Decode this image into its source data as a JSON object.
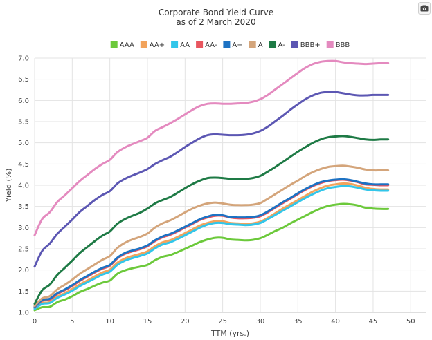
{
  "toolbar": {
    "camera_icon": "camera-icon"
  },
  "chart_data": {
    "type": "line",
    "title": "Corporate Bond Yield Curve",
    "subtitle": "as of 2 March 2020",
    "xlabel": "TTM (yrs.)",
    "ylabel": "Yield (%)",
    "xlim": [
      0,
      52
    ],
    "ylim": [
      1.0,
      7.0
    ],
    "xticks": [
      0,
      5,
      10,
      15,
      20,
      25,
      30,
      35,
      40,
      45,
      50
    ],
    "yticks": [
      "1.0",
      "1.5",
      "2.0",
      "2.5",
      "3.0",
      "3.5",
      "4.0",
      "4.5",
      "5.0",
      "5.5",
      "6.0",
      "6.5",
      "7.0"
    ],
    "grid": true,
    "legend": "top",
    "x": [
      0,
      1,
      2,
      3,
      4,
      5,
      6,
      7,
      8,
      9,
      10,
      11,
      12,
      13,
      14,
      15,
      16,
      17,
      18,
      19,
      20,
      21,
      22,
      23,
      24,
      25,
      26,
      27,
      28,
      29,
      30,
      31,
      32,
      33,
      34,
      35,
      36,
      37,
      38,
      39,
      40,
      41,
      42,
      43,
      44,
      45,
      46,
      47
    ],
    "series": [
      {
        "name": "AAA",
        "color": "#6cc93b",
        "values": [
          1.05,
          1.12,
          1.13,
          1.24,
          1.3,
          1.38,
          1.48,
          1.55,
          1.63,
          1.7,
          1.75,
          1.91,
          1.99,
          2.04,
          2.08,
          2.12,
          2.23,
          2.31,
          2.35,
          2.42,
          2.5,
          2.58,
          2.66,
          2.72,
          2.76,
          2.76,
          2.72,
          2.71,
          2.7,
          2.71,
          2.75,
          2.83,
          2.92,
          3.0,
          3.1,
          3.19,
          3.28,
          3.37,
          3.45,
          3.51,
          3.54,
          3.56,
          3.55,
          3.52,
          3.47,
          3.45,
          3.44,
          3.44
        ]
      },
      {
        "name": "AA+",
        "color": "#f2a35b",
        "values": [
          1.1,
          1.22,
          1.24,
          1.37,
          1.45,
          1.55,
          1.66,
          1.75,
          1.85,
          1.94,
          2.01,
          2.17,
          2.27,
          2.33,
          2.38,
          2.44,
          2.56,
          2.65,
          2.7,
          2.78,
          2.87,
          2.96,
          3.05,
          3.11,
          3.15,
          3.15,
          3.11,
          3.1,
          3.09,
          3.1,
          3.14,
          3.23,
          3.34,
          3.45,
          3.55,
          3.65,
          3.75,
          3.85,
          3.93,
          3.99,
          4.02,
          4.04,
          4.03,
          3.99,
          3.94,
          3.91,
          3.9,
          3.9
        ]
      },
      {
        "name": "AA",
        "color": "#32c6ea",
        "values": [
          1.08,
          1.2,
          1.22,
          1.34,
          1.42,
          1.51,
          1.62,
          1.71,
          1.8,
          1.89,
          1.96,
          2.12,
          2.22,
          2.28,
          2.33,
          2.39,
          2.51,
          2.6,
          2.65,
          2.73,
          2.82,
          2.91,
          3.0,
          3.07,
          3.11,
          3.11,
          3.08,
          3.07,
          3.06,
          3.07,
          3.11,
          3.2,
          3.3,
          3.4,
          3.5,
          3.6,
          3.7,
          3.79,
          3.87,
          3.93,
          3.96,
          3.98,
          3.97,
          3.94,
          3.9,
          3.88,
          3.87,
          3.87
        ]
      },
      {
        "name": "AA-",
        "color": "#e8565f",
        "values": [
          1.12,
          1.27,
          1.3,
          1.43,
          1.52,
          1.62,
          1.74,
          1.84,
          1.94,
          2.03,
          2.1,
          2.27,
          2.38,
          2.44,
          2.49,
          2.56,
          2.68,
          2.77,
          2.83,
          2.91,
          3.0,
          3.09,
          3.18,
          3.24,
          3.28,
          3.28,
          3.24,
          3.22,
          3.22,
          3.23,
          3.27,
          3.36,
          3.47,
          3.58,
          3.68,
          3.79,
          3.89,
          3.98,
          4.05,
          4.1,
          4.12,
          4.13,
          4.11,
          4.07,
          4.02,
          4.01,
          4.0,
          4.0
        ]
      },
      {
        "name": "A+",
        "color": "#1d72c3",
        "values": [
          1.13,
          1.29,
          1.32,
          1.45,
          1.54,
          1.64,
          1.76,
          1.86,
          1.96,
          2.05,
          2.12,
          2.29,
          2.4,
          2.46,
          2.51,
          2.58,
          2.7,
          2.79,
          2.85,
          2.93,
          3.02,
          3.11,
          3.2,
          3.26,
          3.3,
          3.29,
          3.25,
          3.24,
          3.24,
          3.25,
          3.29,
          3.38,
          3.49,
          3.6,
          3.7,
          3.81,
          3.91,
          4.0,
          4.07,
          4.11,
          4.13,
          4.14,
          4.12,
          4.08,
          4.04,
          4.02,
          4.02,
          4.02
        ]
      },
      {
        "name": "A",
        "color": "#d4a57b",
        "values": [
          1.15,
          1.33,
          1.38,
          1.54,
          1.65,
          1.77,
          1.91,
          2.02,
          2.13,
          2.24,
          2.33,
          2.52,
          2.64,
          2.72,
          2.78,
          2.86,
          3.0,
          3.1,
          3.17,
          3.26,
          3.36,
          3.45,
          3.52,
          3.57,
          3.59,
          3.57,
          3.54,
          3.53,
          3.53,
          3.54,
          3.58,
          3.68,
          3.79,
          3.9,
          4.01,
          4.11,
          4.22,
          4.31,
          4.38,
          4.43,
          4.45,
          4.46,
          4.44,
          4.41,
          4.37,
          4.35,
          4.35,
          4.35
        ]
      },
      {
        "name": "A-",
        "color": "#1e7a45",
        "values": [
          1.2,
          1.52,
          1.65,
          1.88,
          2.05,
          2.22,
          2.4,
          2.54,
          2.68,
          2.81,
          2.91,
          3.09,
          3.2,
          3.28,
          3.35,
          3.45,
          3.57,
          3.65,
          3.72,
          3.82,
          3.93,
          4.03,
          4.11,
          4.17,
          4.18,
          4.17,
          4.15,
          4.15,
          4.15,
          4.17,
          4.22,
          4.32,
          4.43,
          4.55,
          4.67,
          4.79,
          4.9,
          5.0,
          5.08,
          5.13,
          5.15,
          5.16,
          5.14,
          5.11,
          5.08,
          5.07,
          5.08,
          5.08
        ]
      },
      {
        "name": "BBB+",
        "color": "#5c57b3",
        "values": [
          2.08,
          2.45,
          2.62,
          2.85,
          3.02,
          3.19,
          3.37,
          3.51,
          3.65,
          3.77,
          3.86,
          4.04,
          4.15,
          4.23,
          4.3,
          4.38,
          4.5,
          4.59,
          4.67,
          4.78,
          4.9,
          5.01,
          5.11,
          5.18,
          5.2,
          5.19,
          5.18,
          5.18,
          5.19,
          5.22,
          5.28,
          5.38,
          5.51,
          5.64,
          5.78,
          5.91,
          6.03,
          6.12,
          6.18,
          6.2,
          6.2,
          6.17,
          6.14,
          6.12,
          6.12,
          6.13,
          6.13,
          6.13
        ]
      },
      {
        "name": "BBB",
        "color": "#e48abf",
        "values": [
          2.82,
          3.2,
          3.36,
          3.6,
          3.76,
          3.93,
          4.1,
          4.24,
          4.38,
          4.5,
          4.6,
          4.78,
          4.89,
          4.97,
          5.04,
          5.12,
          5.28,
          5.37,
          5.46,
          5.56,
          5.67,
          5.78,
          5.87,
          5.92,
          5.93,
          5.92,
          5.92,
          5.93,
          5.94,
          5.97,
          6.03,
          6.13,
          6.26,
          6.39,
          6.52,
          6.65,
          6.77,
          6.86,
          6.91,
          6.93,
          6.93,
          6.9,
          6.88,
          6.87,
          6.86,
          6.87,
          6.88,
          6.88
        ]
      }
    ]
  }
}
